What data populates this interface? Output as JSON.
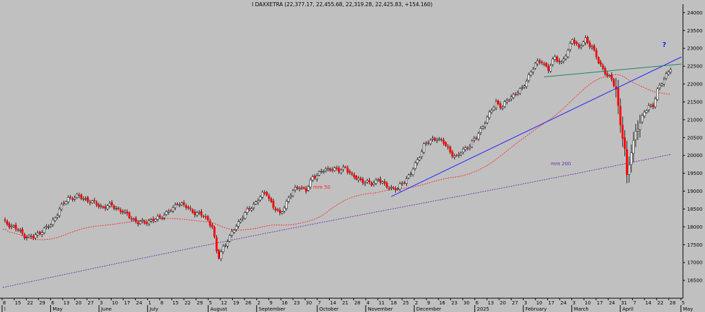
{
  "chart_data": {
    "type": "candlestick",
    "title": "I DAXXETRA (22,377.17, 22,455.68, 22,319.28, 22,425.83, +154.160)",
    "ylim": [
      16000,
      24200
    ],
    "y_ticks": [
      16500,
      17000,
      17500,
      18000,
      18500,
      19000,
      19500,
      20000,
      20500,
      21000,
      21500,
      22000,
      22500,
      23000,
      23500,
      24000
    ],
    "y_tick_labels": [
      "16500",
      "17000",
      "17500",
      "18000",
      "18500",
      "19000",
      "19500",
      "20000",
      "20500",
      "21000",
      "21500",
      "22000",
      "22500",
      "23000",
      "23500",
      "24000"
    ],
    "x_day_labels": [
      "8",
      "15",
      "22",
      "29",
      "6",
      "13",
      "20",
      "27",
      "3",
      "10",
      "17",
      "24",
      "1",
      "8",
      "15",
      "22",
      "29",
      "5",
      "12",
      "19",
      "26",
      "2",
      "9",
      "16",
      "23",
      "30",
      "7",
      "14",
      "21",
      "28",
      "4",
      "11",
      "18",
      "25",
      "2",
      "9",
      "16",
      "23",
      "30",
      "6",
      "13",
      "20",
      "27",
      "3",
      "10",
      "17",
      "24",
      "3",
      "10",
      "17",
      "24",
      "31",
      "7",
      "14",
      "22",
      "28",
      "5"
    ],
    "x_month_labels": [
      "l",
      "May",
      "June",
      "July",
      "August",
      "September",
      "October",
      "November",
      "December",
      "2025",
      "February",
      "March",
      "April",
      "May"
    ],
    "annotations": {
      "mm50": "mm 50",
      "mm200": "mm 200",
      "question": "?"
    },
    "price_anchors": [
      [
        0,
        18150
      ],
      [
        5,
        18000
      ],
      [
        10,
        17750
      ],
      [
        14,
        17700
      ],
      [
        18,
        17900
      ],
      [
        22,
        18050
      ],
      [
        26,
        18500
      ],
      [
        30,
        18800
      ],
      [
        34,
        18850
      ],
      [
        38,
        18780
      ],
      [
        42,
        18650
      ],
      [
        46,
        18550
      ],
      [
        50,
        18600
      ],
      [
        54,
        18450
      ],
      [
        58,
        18300
      ],
      [
        62,
        18100
      ],
      [
        66,
        18150
      ],
      [
        70,
        18200
      ],
      [
        74,
        18350
      ],
      [
        78,
        18500
      ],
      [
        80,
        18700
      ],
      [
        84,
        18550
      ],
      [
        88,
        18400
      ],
      [
        92,
        18300
      ],
      [
        94,
        18200
      ],
      [
        96,
        18000
      ],
      [
        98,
        17300
      ],
      [
        99,
        17150
      ],
      [
        101,
        17450
      ],
      [
        104,
        17700
      ],
      [
        107,
        18050
      ],
      [
        110,
        18300
      ],
      [
        113,
        18500
      ],
      [
        116,
        18700
      ],
      [
        119,
        18900
      ],
      [
        121,
        18950
      ],
      [
        124,
        18550
      ],
      [
        127,
        18350
      ],
      [
        130,
        18700
      ],
      [
        133,
        19000
      ],
      [
        136,
        19150
      ],
      [
        139,
        19000
      ],
      [
        142,
        19400
      ],
      [
        145,
        19500
      ],
      [
        148,
        19600
      ],
      [
        151,
        19650
      ],
      [
        154,
        19550
      ],
      [
        157,
        19700
      ],
      [
        160,
        19400
      ],
      [
        163,
        19350
      ],
      [
        166,
        19250
      ],
      [
        169,
        19200
      ],
      [
        172,
        19350
      ],
      [
        175,
        19150
      ],
      [
        178,
        19100
      ],
      [
        181,
        19050
      ],
      [
        184,
        19300
      ],
      [
        187,
        19500
      ],
      [
        190,
        19850
      ],
      [
        193,
        20300
      ],
      [
        196,
        20400
      ],
      [
        199,
        20500
      ],
      [
        202,
        20350
      ],
      [
        205,
        20100
      ],
      [
        208,
        19950
      ],
      [
        211,
        20150
      ],
      [
        214,
        20300
      ],
      [
        217,
        20500
      ],
      [
        220,
        20850
      ],
      [
        223,
        21150
      ],
      [
        226,
        21500
      ],
      [
        229,
        21350
      ],
      [
        232,
        21600
      ],
      [
        235,
        21750
      ],
      [
        238,
        21850
      ],
      [
        241,
        22250
      ],
      [
        244,
        22550
      ],
      [
        247,
        22650
      ],
      [
        250,
        22400
      ],
      [
        253,
        22750
      ],
      [
        256,
        22600
      ],
      [
        259,
        22900
      ],
      [
        261,
        23300
      ],
      [
        264,
        23000
      ],
      [
        267,
        23250
      ],
      [
        270,
        23050
      ],
      [
        273,
        22600
      ],
      [
        276,
        22350
      ],
      [
        279,
        22100
      ],
      [
        281,
        21850
      ],
      [
        283,
        20900
      ],
      [
        285,
        20150
      ],
      [
        286,
        19400
      ],
      [
        288,
        20100
      ],
      [
        290,
        20700
      ],
      [
        292,
        20900
      ],
      [
        294,
        21200
      ],
      [
        296,
        21400
      ],
      [
        298,
        21400
      ],
      [
        300,
        21800
      ],
      [
        302,
        22050
      ],
      [
        304,
        22280
      ],
      [
        306,
        22430
      ]
    ],
    "trend_lines": [
      {
        "name": "blue-trendline",
        "color": "#2020ff",
        "points": [
          [
            "2024-11-11",
            18850
          ],
          [
            "2025-05-02",
            22760
          ]
        ]
      },
      {
        "name": "neckline",
        "color": "#208060",
        "points": [
          [
            "2025-02-14",
            22200
          ],
          [
            "2025-05-02",
            22560
          ]
        ]
      }
    ],
    "colors": {
      "background": "#c0c0c0",
      "up": "#ffffff",
      "down": "#ff0000",
      "mm50": "#ff2020",
      "mm200": "#6a2ca8",
      "trend": "#2020ff",
      "neckline": "#208060",
      "question": "#2020ff"
    }
  }
}
